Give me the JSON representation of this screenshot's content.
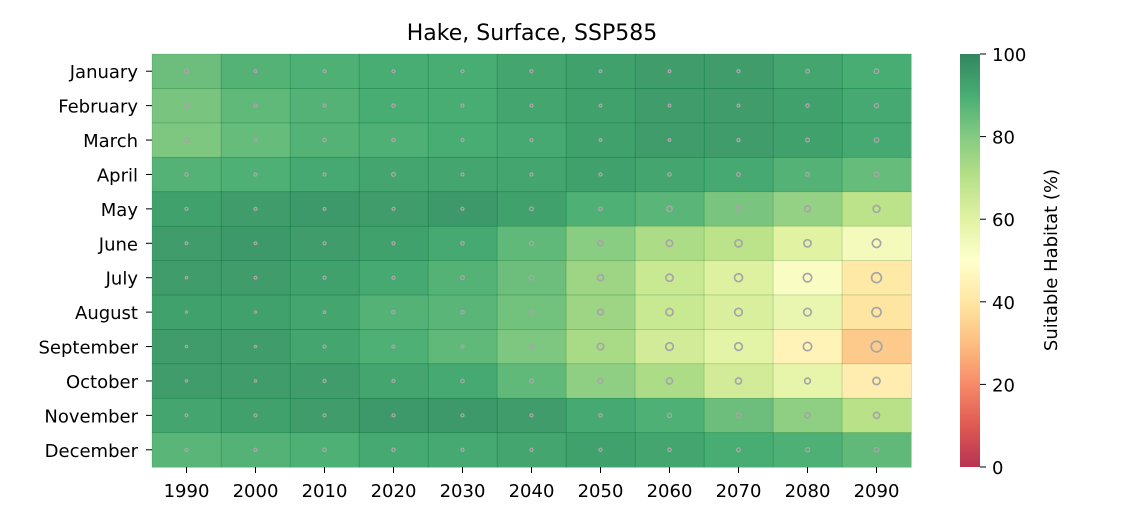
{
  "chart_data": {
    "type": "heatmap",
    "title": "Hake, Surface, SSP585",
    "x": [
      "1990",
      "2000",
      "2010",
      "2020",
      "2030",
      "2040",
      "2050",
      "2060",
      "2070",
      "2080",
      "2090"
    ],
    "y": [
      "January",
      "February",
      "March",
      "April",
      "May",
      "June",
      "July",
      "August",
      "September",
      "October",
      "November",
      "December"
    ],
    "values": [
      [
        84,
        88,
        89,
        90,
        90,
        92,
        93,
        94,
        94,
        92,
        90
      ],
      [
        82,
        86,
        88,
        90,
        90,
        92,
        93,
        94,
        94,
        93,
        91
      ],
      [
        81,
        85,
        88,
        89,
        90,
        91,
        93,
        94,
        94,
        93,
        91
      ],
      [
        88,
        89,
        91,
        92,
        92,
        92,
        93,
        92,
        91,
        88,
        85
      ],
      [
        93,
        94,
        95,
        94,
        95,
        93,
        89,
        87,
        82,
        77,
        69
      ],
      [
        94,
        95,
        94,
        93,
        91,
        86,
        79,
        72,
        69,
        60,
        54
      ],
      [
        94,
        94,
        93,
        91,
        88,
        84,
        75,
        66,
        61,
        52,
        41
      ],
      [
        93,
        93,
        92,
        88,
        87,
        83,
        75,
        66,
        62,
        57,
        40
      ],
      [
        94,
        94,
        92,
        89,
        86,
        81,
        73,
        64,
        59,
        45,
        33
      ],
      [
        94,
        94,
        94,
        92,
        91,
        86,
        78,
        72,
        64,
        58,
        43
      ],
      [
        92,
        93,
        94,
        95,
        95,
        94,
        91,
        89,
        84,
        78,
        70
      ],
      [
        87,
        88,
        89,
        91,
        91,
        92,
        93,
        92,
        90,
        89,
        86
      ]
    ],
    "markers": [
      [
        1.1,
        0.7,
        0.8,
        0.8,
        0.8,
        0.8,
        0.7,
        0.7,
        0.8,
        1.0,
        1.2
      ],
      [
        1.2,
        0.8,
        0.8,
        0.9,
        0.8,
        0.8,
        0.7,
        0.7,
        0.7,
        0.9,
        1.1
      ],
      [
        1.3,
        0.8,
        0.9,
        0.9,
        0.8,
        0.8,
        0.7,
        0.7,
        0.8,
        1.0,
        1.2
      ],
      [
        0.9,
        0.8,
        0.8,
        1.0,
        0.8,
        0.8,
        0.8,
        0.9,
        1.0,
        1.0,
        1.2
      ],
      [
        0.8,
        0.8,
        0.7,
        0.8,
        0.8,
        1.0,
        1.0,
        1.4,
        1.5,
        1.5,
        1.8
      ],
      [
        0.7,
        0.7,
        0.8,
        0.8,
        0.9,
        1.1,
        1.4,
        1.7,
        1.9,
        1.9,
        2.2
      ],
      [
        0.6,
        0.7,
        0.8,
        0.8,
        1.0,
        1.2,
        1.6,
        1.9,
        2.1,
        2.2,
        2.6
      ],
      [
        0.6,
        0.6,
        0.7,
        0.9,
        0.9,
        1.2,
        1.5,
        1.9,
        2.0,
        2.0,
        2.4
      ],
      [
        0.6,
        0.6,
        0.8,
        0.8,
        0.8,
        1.1,
        1.7,
        2.0,
        2.0,
        2.2,
        2.8
      ],
      [
        0.6,
        0.6,
        0.8,
        0.8,
        0.9,
        1.0,
        1.3,
        1.6,
        1.6,
        1.5,
        1.9
      ],
      [
        0.7,
        0.8,
        0.8,
        0.8,
        0.8,
        0.8,
        0.9,
        1.1,
        1.3,
        1.4,
        1.6
      ],
      [
        0.8,
        0.8,
        0.9,
        0.9,
        0.8,
        0.8,
        0.8,
        0.9,
        1.0,
        1.1,
        1.2
      ]
    ],
    "colorbar": {
      "label": "Suitable Habitat (%)",
      "range": [
        0,
        100
      ],
      "ticks": [
        "0",
        "20",
        "40",
        "60",
        "80",
        "100"
      ],
      "colormap": "RdYlGn",
      "stops": [
        "#a50026",
        "#d73027",
        "#f46d43",
        "#fdae61",
        "#fee08b",
        "#ffffbf",
        "#d9ef8b",
        "#a6d96a",
        "#66bd63",
        "#1a9850",
        "#006837"
      ]
    },
    "cell_alpha": 0.8,
    "grid": false
  }
}
